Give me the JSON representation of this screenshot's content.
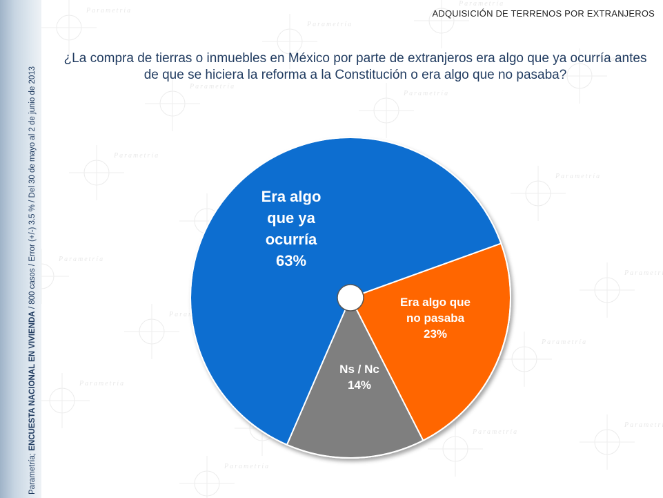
{
  "header": {
    "section_title": "ADQUISICIÓN DE TERRENOS POR EXTRANJEROS"
  },
  "question": {
    "line1": "¿La compra de tierras o inmuebles en México por parte de extranjeros era algo que ya ocurría antes",
    "line2": "de que se hiciera la reforma a la Constitución o era algo que no pasaba?"
  },
  "sidebar": {
    "brand": "Parametría; ",
    "survey": "ENCUESTA NACIONAL EN VIVIENDA",
    "details": " / 800 casos / Error (+/-) 3.5 % / Del 30 de mayo al 2  de junio de 2013"
  },
  "watermark": {
    "text": "Parametría"
  },
  "colors": {
    "blue": "#0a6ed0",
    "orange": "#ff6600",
    "gray": "#7f7f7f",
    "text_blue": "#1f3a5f"
  },
  "chart_data": {
    "type": "pie",
    "slices": [
      {
        "label_lines": [
          "Era algo",
          "que ya",
          "ocurría",
          "63%"
        ],
        "value": 63,
        "color": "#0a6ed0"
      },
      {
        "label_lines": [
          "Era algo que",
          "no pasaba",
          "23%"
        ],
        "value": 23,
        "color": "#ff6600"
      },
      {
        "label_lines": [
          "Ns / Nc",
          "14%"
        ],
        "value": 14,
        "color": "#7f7f7f"
      }
    ]
  }
}
